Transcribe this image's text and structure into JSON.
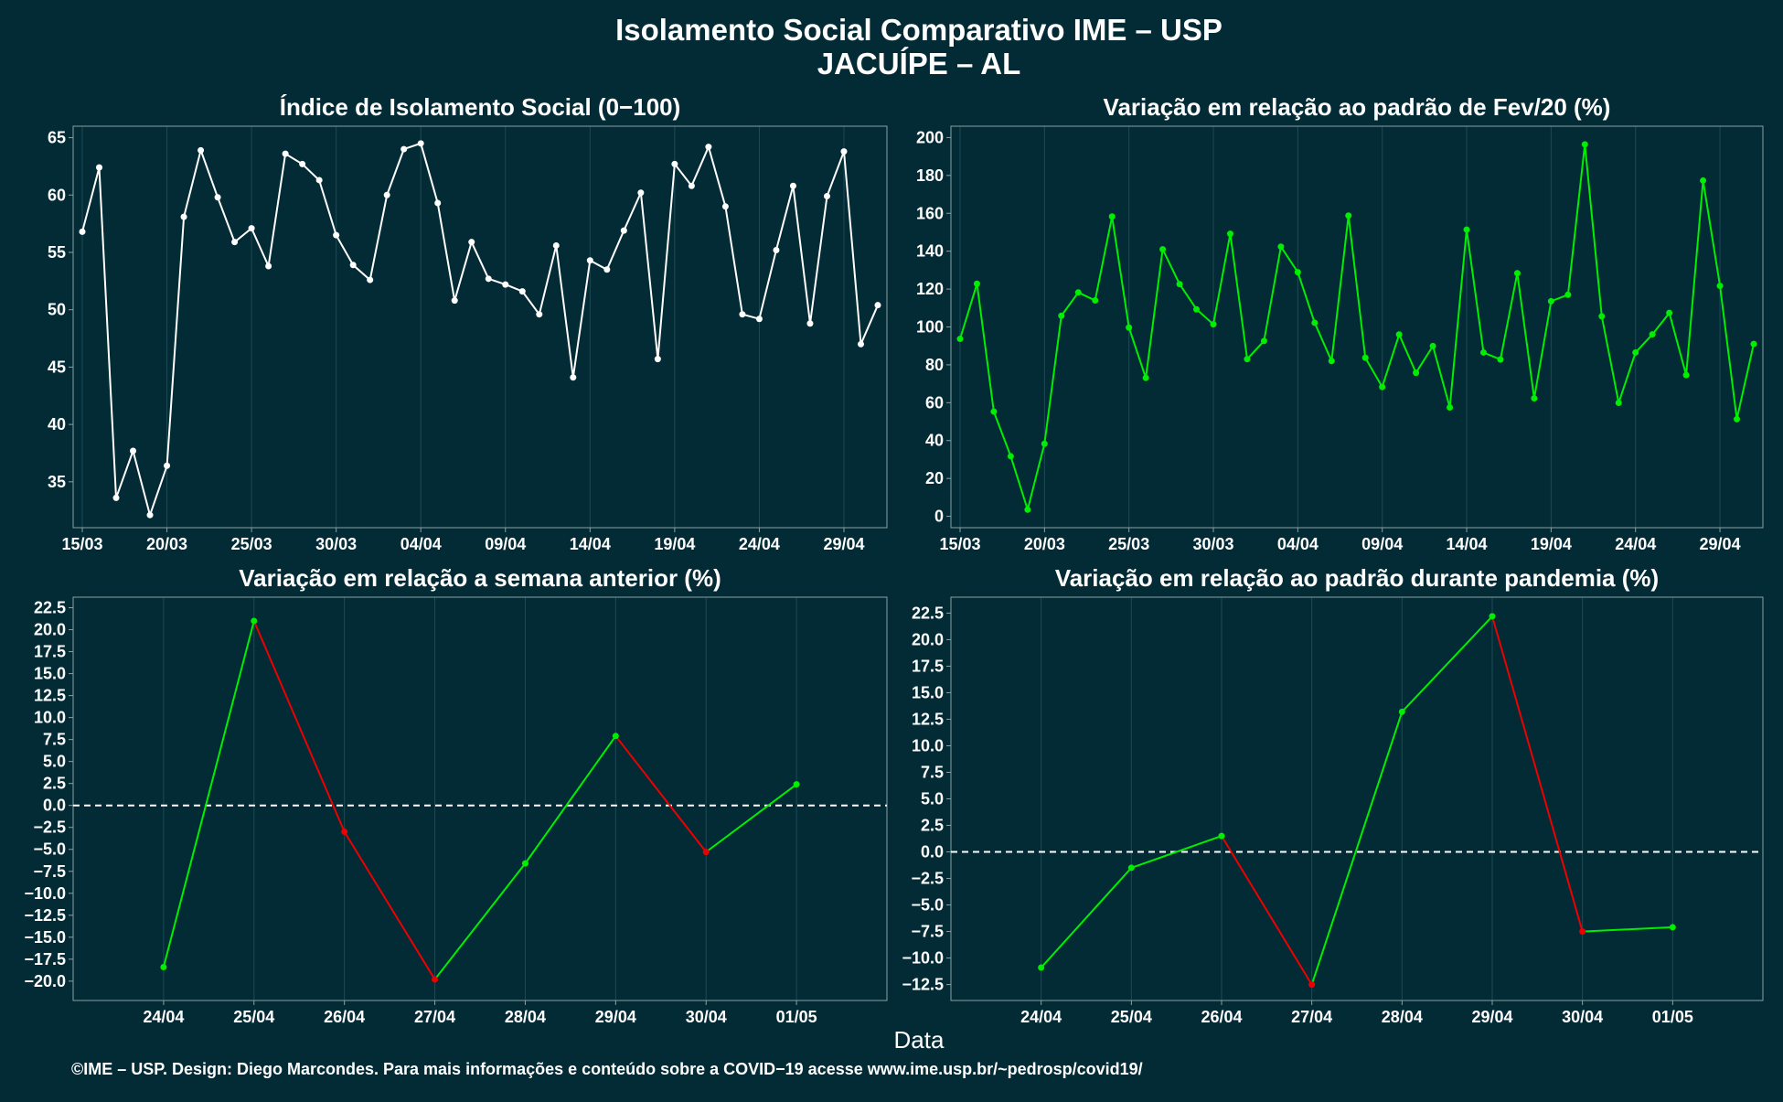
{
  "title_line1": "Isolamento Social Comparativo IME – USP",
  "title_line2": "JACUÍPE – AL",
  "x_label": "Data",
  "caption": "©IME – USP. Design: Diego Marcondes. Para mais informações e conteúdo sobre a COVID−19 acesse www.ime.usp.br/~pedrosp/covid19/",
  "colors": {
    "background": "#022b36",
    "white": "#ffffff",
    "green": "#00ee00",
    "red": "#ee0000",
    "grid": "#1e4a55",
    "axis": "#8aa0a6"
  },
  "chart_data": [
    {
      "id": "indice",
      "type": "line",
      "title": "Índice de Isolamento Social (0−100)",
      "color": "white",
      "x_start": "2020-03-15",
      "tick_labels": [
        "15/03",
        "20/03",
        "25/03",
        "30/03",
        "04/04",
        "09/04",
        "14/04",
        "19/04",
        "24/04",
        "29/04"
      ],
      "ylim": [
        31,
        66
      ],
      "y_ticks": [
        35,
        40,
        45,
        50,
        55,
        60,
        65
      ],
      "y_decimals": 0,
      "values": [
        56.8,
        62.4,
        33.6,
        37.7,
        32.1,
        36.4,
        58.1,
        63.9,
        59.8,
        55.9,
        57.1,
        53.8,
        63.6,
        62.7,
        61.3,
        56.5,
        53.9,
        52.6,
        60.0,
        64.0,
        64.5,
        59.3,
        50.8,
        55.9,
        52.7,
        52.2,
        51.6,
        49.6,
        55.6,
        44.1,
        54.3,
        53.5,
        56.9,
        60.2,
        45.7,
        62.7,
        60.8,
        64.2,
        59.0,
        49.6,
        49.2,
        55.2,
        60.8,
        48.8,
        59.9,
        63.8,
        47.0,
        50.4
      ]
    },
    {
      "id": "fev",
      "type": "line",
      "title": "Variação em relação ao padrão de Fev/20 (%)",
      "color": "green",
      "x_start": "2020-03-15",
      "tick_labels": [
        "15/03",
        "20/03",
        "25/03",
        "30/03",
        "04/04",
        "09/04",
        "14/04",
        "19/04",
        "24/04",
        "29/04"
      ],
      "ylim": [
        -6,
        206
      ],
      "y_ticks": [
        0,
        20,
        40,
        60,
        80,
        100,
        120,
        140,
        160,
        180,
        200
      ],
      "y_decimals": 0,
      "values": [
        93.7,
        122.8,
        55.3,
        31.7,
        3.5,
        38.3,
        105.9,
        118.2,
        114.0,
        158.3,
        99.7,
        73.1,
        141.0,
        122.6,
        109.3,
        101.4,
        149.2,
        83.0,
        92.6,
        142.4,
        128.9,
        102.2,
        82.0,
        158.8,
        83.7,
        68.3,
        96.0,
        75.8,
        89.9,
        57.5,
        151.4,
        86.5,
        82.8,
        128.4,
        62.3,
        113.6,
        117.0,
        196.4,
        105.6,
        59.9,
        86.5,
        96.1,
        107.4,
        74.6,
        177.3,
        121.7,
        51.3,
        91.0
      ]
    },
    {
      "id": "semana",
      "type": "line",
      "title": "Variação em relação a semana anterior (%)",
      "colored_segments": true,
      "zero_line": true,
      "categories": [
        "24/04",
        "25/04",
        "26/04",
        "27/04",
        "28/04",
        "29/04",
        "30/04",
        "01/05"
      ],
      "ylim": [
        -22.2,
        23.7
      ],
      "y_ticks": [
        -20,
        -17.5,
        -15,
        -12.5,
        -10,
        -7.5,
        -5,
        -2.5,
        0,
        2.5,
        5,
        7.5,
        10,
        12.5,
        15,
        17.5,
        20,
        22.5
      ],
      "y_decimals": 1,
      "values": [
        -18.4,
        21.0,
        -3.0,
        -19.8,
        -6.6,
        7.9,
        -5.3,
        2.4
      ]
    },
    {
      "id": "pandemia",
      "type": "line",
      "title": "Variação em relação ao padrão durante pandemia (%)",
      "colored_segments": true,
      "zero_line": true,
      "categories": [
        "24/04",
        "25/04",
        "26/04",
        "27/04",
        "28/04",
        "29/04",
        "30/04",
        "01/05"
      ],
      "ylim": [
        -14.0,
        24.0
      ],
      "y_ticks": [
        -12.5,
        -10,
        -7.5,
        -5,
        -2.5,
        0,
        2.5,
        5,
        7.5,
        10,
        12.5,
        15,
        17.5,
        20,
        22.5
      ],
      "y_decimals": 1,
      "values": [
        -10.9,
        -1.5,
        1.5,
        -12.5,
        13.2,
        22.2,
        -7.5,
        -7.1
      ]
    }
  ]
}
